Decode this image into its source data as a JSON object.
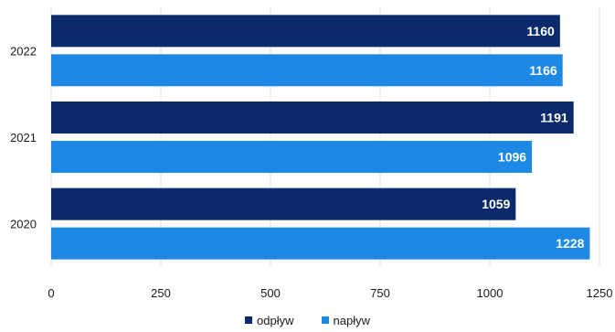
{
  "chart_data": {
    "type": "bar",
    "orientation": "horizontal",
    "title": "",
    "xlabel": "",
    "ylabel": "",
    "categories": [
      "2022",
      "2021",
      "2020"
    ],
    "series": [
      {
        "name": "odpływ",
        "color": "#0a2a6b",
        "values": [
          1160,
          1191,
          1059
        ]
      },
      {
        "name": "napływ",
        "color": "#1e88e5",
        "values": [
          1166,
          1096,
          1228
        ]
      }
    ],
    "xlim": [
      0,
      1250
    ],
    "xticks": [
      "0",
      "250",
      "500",
      "750",
      "1000",
      "1250"
    ],
    "grid": true,
    "legend": "bottom"
  }
}
